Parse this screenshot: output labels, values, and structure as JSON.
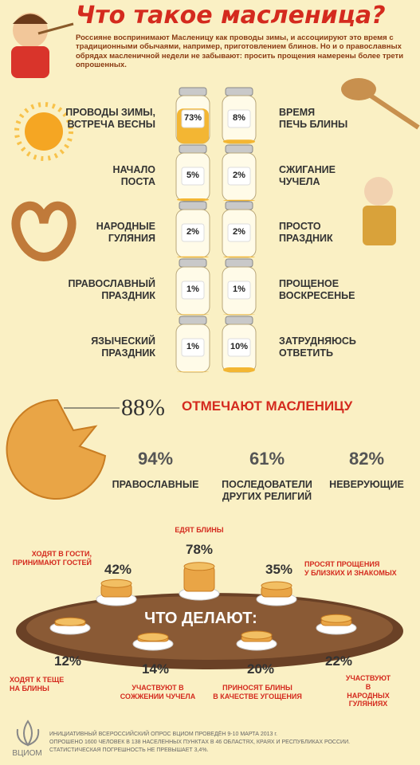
{
  "header": {
    "title": "Что такое масленица?",
    "text": "Россияне воспринимают Масленицу как проводы зимы, и ассоциируют это время с традиционными обычаями, например, приготовлением блинов. Но и о православных обрядах масленичной недели не забывают: просить прощения намерены более трети опрошенных."
  },
  "left_column": [
    {
      "label": "ПРОВОДЫ ЗИМЫ,\nВСТРЕЧА ВЕСНЫ",
      "value": 73,
      "value_label": "73%"
    },
    {
      "label": "НАЧАЛО\nПОСТА",
      "value": 5,
      "value_label": "5%"
    },
    {
      "label": "НАРОДНЫЕ\nГУЛЯНИЯ",
      "value": 2,
      "value_label": "2%"
    },
    {
      "label": "ПРАВОСЛАВНЫЙ\nПРАЗДНИК",
      "value": 1,
      "value_label": "1%"
    },
    {
      "label": "ЯЗЫЧЕСКИЙ\nПРАЗДНИК",
      "value": 1,
      "value_label": "1%"
    }
  ],
  "right_column": [
    {
      "label": "ВРЕМЯ\nПЕЧЬ БЛИНЫ",
      "value": 8,
      "value_label": "8%"
    },
    {
      "label": "СЖИГАНИЕ\nЧУЧЕЛА",
      "value": 2,
      "value_label": "2%"
    },
    {
      "label": "ПРОСТО\nПРАЗДНИК",
      "value": 2,
      "value_label": "2%"
    },
    {
      "label": "ПРОЩЕНОЕ\nВОСКРЕСЕНЬЕ",
      "value": 1,
      "value_label": "1%"
    },
    {
      "label": "ЗАТРУДНЯЮСЬ\nОТВЕТИТЬ",
      "value": 10,
      "value_label": "10%"
    }
  ],
  "celebrate": {
    "percent": "88%",
    "text": "ОТМЕЧАЮТ МАСЛЕНИЦУ",
    "groups": [
      {
        "percent": "94%",
        "label": "ПРАВОСЛАВНЫЕ"
      },
      {
        "percent": "61%",
        "label": "ПОСЛЕДОВАТЕЛИ\nДРУГИХ РЕЛИГИЙ"
      },
      {
        "percent": "82%",
        "label": "НЕВЕРУЮЩИЕ"
      }
    ]
  },
  "activities": {
    "title": "ЧТО ДЕЛАЮТ:",
    "items": [
      {
        "label": "ЕДЯТ БЛИНЫ",
        "value": 78,
        "value_label": "78%"
      },
      {
        "label": "ХОДЯТ В ГОСТИ,\nПРИНИМАЮТ ГОСТЕЙ",
        "value": 42,
        "value_label": "42%"
      },
      {
        "label": "ПРОСЯТ ПРОЩЕНИЯ\nУ БЛИЗКИХ И ЗНАКОМЫХ",
        "value": 35,
        "value_label": "35%"
      },
      {
        "label": "ХОДЯТ К ТЕЩЕ\nНА БЛИНЫ",
        "value": 12,
        "value_label": "12%"
      },
      {
        "label": "УЧАСТВУЮТ В\nСОЖЖЕНИИ ЧУЧЕЛА",
        "value": 14,
        "value_label": "14%"
      },
      {
        "label": "ПРИНОСЯТ БЛИНЫ\nВ КАЧЕСТВЕ УГОЩЕНИЯ",
        "value": 20,
        "value_label": "20%"
      },
      {
        "label": "УЧАСТВУЮТ В\nНАРОДНЫХ ГУЛЯНИЯХ",
        "value": 22,
        "value_label": "22%"
      }
    ]
  },
  "footer": {
    "logo": "ВЦИОМ",
    "lines": [
      "ИНИЦИАТИВНЫЙ ВСЕРОССИЙСКИЙ ОПРОС ВЦИОМ ПРОВЕДЁН 9-10 МАРТА 2013 г.",
      "ОПРОШЕНО 1600 ЧЕЛОВЕК В 138 НАСЕЛЕННЫХ ПУНКТАХ В 46 ОБЛАСТЯХ, КРАЯХ И РЕСПУБЛИКАХ РОССИИ.",
      "СТАТИСТИЧЕСКАЯ ПОГРЕШНОСТЬ НЕ ПРЕВЫШАЕТ 3,4%."
    ]
  }
}
